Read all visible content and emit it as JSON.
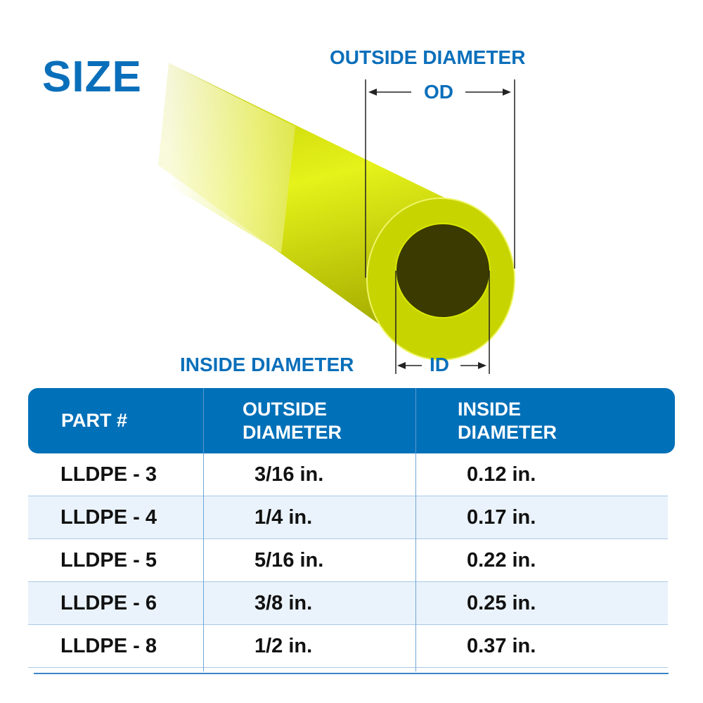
{
  "title": "SIZE",
  "diagram": {
    "outside_label": "OUTSIDE DIAMETER",
    "od_abbr": "OD",
    "inside_label": "INSIDE DIAMETER",
    "id_abbr": "ID",
    "tube_color": "#d4e600",
    "accent": "#0a6fba"
  },
  "table": {
    "headers": [
      "PART #",
      "OUTSIDE\nDIAMETER",
      "INSIDE\nDIAMETER"
    ],
    "header_color": "#0070b8",
    "rows": [
      {
        "part": "LLDPE - 3",
        "od": "3/16 in.",
        "id": "0.12 in."
      },
      {
        "part": "LLDPE - 4",
        "od": "1/4 in.",
        "id": "0.17 in."
      },
      {
        "part": "LLDPE - 5",
        "od": "5/16 in.",
        "id": "0.22 in."
      },
      {
        "part": "LLDPE - 6",
        "od": "3/8 in.",
        "id": "0.25 in."
      },
      {
        "part": "LLDPE - 8",
        "od": "1/2 in.",
        "id": "0.37 in."
      }
    ]
  }
}
